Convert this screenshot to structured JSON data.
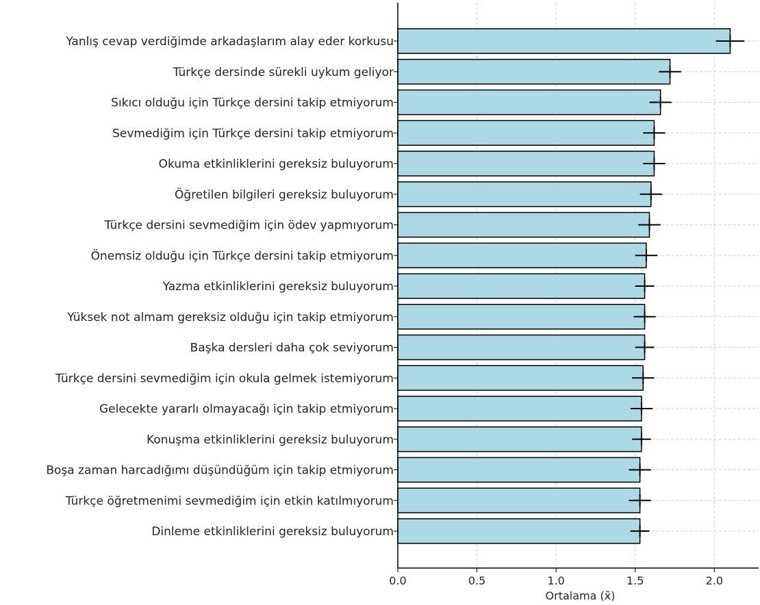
{
  "chart_data": {
    "type": "bar",
    "orientation": "horizontal",
    "title": "",
    "xlabel": "Ortalama (x̃)",
    "ylabel": "",
    "xlim": [
      0.0,
      2.28
    ],
    "xticks": [
      0.0,
      0.5,
      1.0,
      1.5,
      2.0
    ],
    "xtick_labels": [
      "0.0",
      "0.5",
      "1.0",
      "1.5",
      "2.0"
    ],
    "grid": true,
    "legend": "none",
    "bar_color": "#add8e6",
    "edge_color": "#000000",
    "grid_color": "#d0d0d0",
    "categories": [
      "Yanlış cevap verdiğimde arkadaşlarım alay eder korkusu",
      "Türkçe dersinde sürekli uykum geliyor",
      "Sıkıcı olduğu için Türkçe dersini takip etmiyorum",
      "Sevmediğim için Türkçe dersini takip etmiyorum",
      "Okuma etkinliklerini gereksiz buluyorum",
      "Öğretilen bilgileri gereksiz buluyorum",
      "Türkçe dersini sevmediğim için ödev yapmıyorum",
      "Önemsiz olduğu için Türkçe dersini takip etmiyorum",
      "Yazma etkinliklerini gereksiz buluyorum",
      "Yüksek not almam gereksiz olduğu için takip etmiyorum",
      "Başka dersleri daha çok seviyorum",
      "Türkçe dersini sevmediğim için okula gelmek istemiyorum",
      "Gelecekte yararlı olmayacağı için takip etmiyorum",
      "Konuşma etkinliklerini gereksiz buluyorum",
      "Boşa zaman harcadığımı düşündüğüm için takip etmiyorum",
      "Türkçe öğretmenimi sevmediğim için etkin katılmıyorum",
      "Dinleme etkinliklerini gereksiz buluyorum"
    ],
    "values": [
      2.1,
      1.72,
      1.66,
      1.62,
      1.62,
      1.6,
      1.59,
      1.57,
      1.56,
      1.56,
      1.56,
      1.55,
      1.54,
      1.54,
      1.53,
      1.53,
      1.53
    ],
    "errors": [
      0.09,
      0.07,
      0.07,
      0.07,
      0.07,
      0.07,
      0.07,
      0.07,
      0.06,
      0.07,
      0.06,
      0.07,
      0.07,
      0.06,
      0.07,
      0.07,
      0.06
    ]
  }
}
